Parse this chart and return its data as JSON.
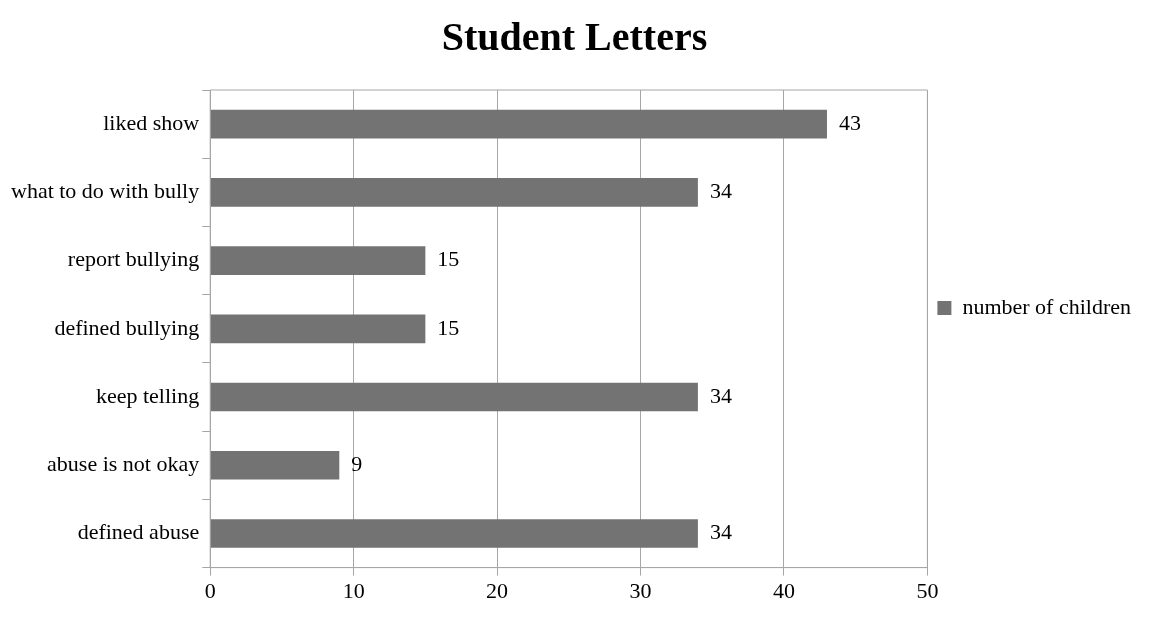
{
  "chart_data": {
    "type": "bar",
    "title": "Student Letters",
    "orientation": "horizontal",
    "categories": [
      "liked show",
      "what to do with bully",
      "report bullying",
      "defined bullying",
      "keep telling",
      "abuse is not okay",
      "defined abuse"
    ],
    "series": [
      {
        "name": "number of children",
        "color": "#737373",
        "values": [
          43,
          34,
          15,
          15,
          34,
          9,
          34
        ]
      }
    ],
    "xlim": [
      0,
      50
    ],
    "xticks": [
      0,
      10,
      20,
      30,
      40,
      50
    ],
    "grid": "x",
    "legend": "right",
    "data_labels": true
  }
}
